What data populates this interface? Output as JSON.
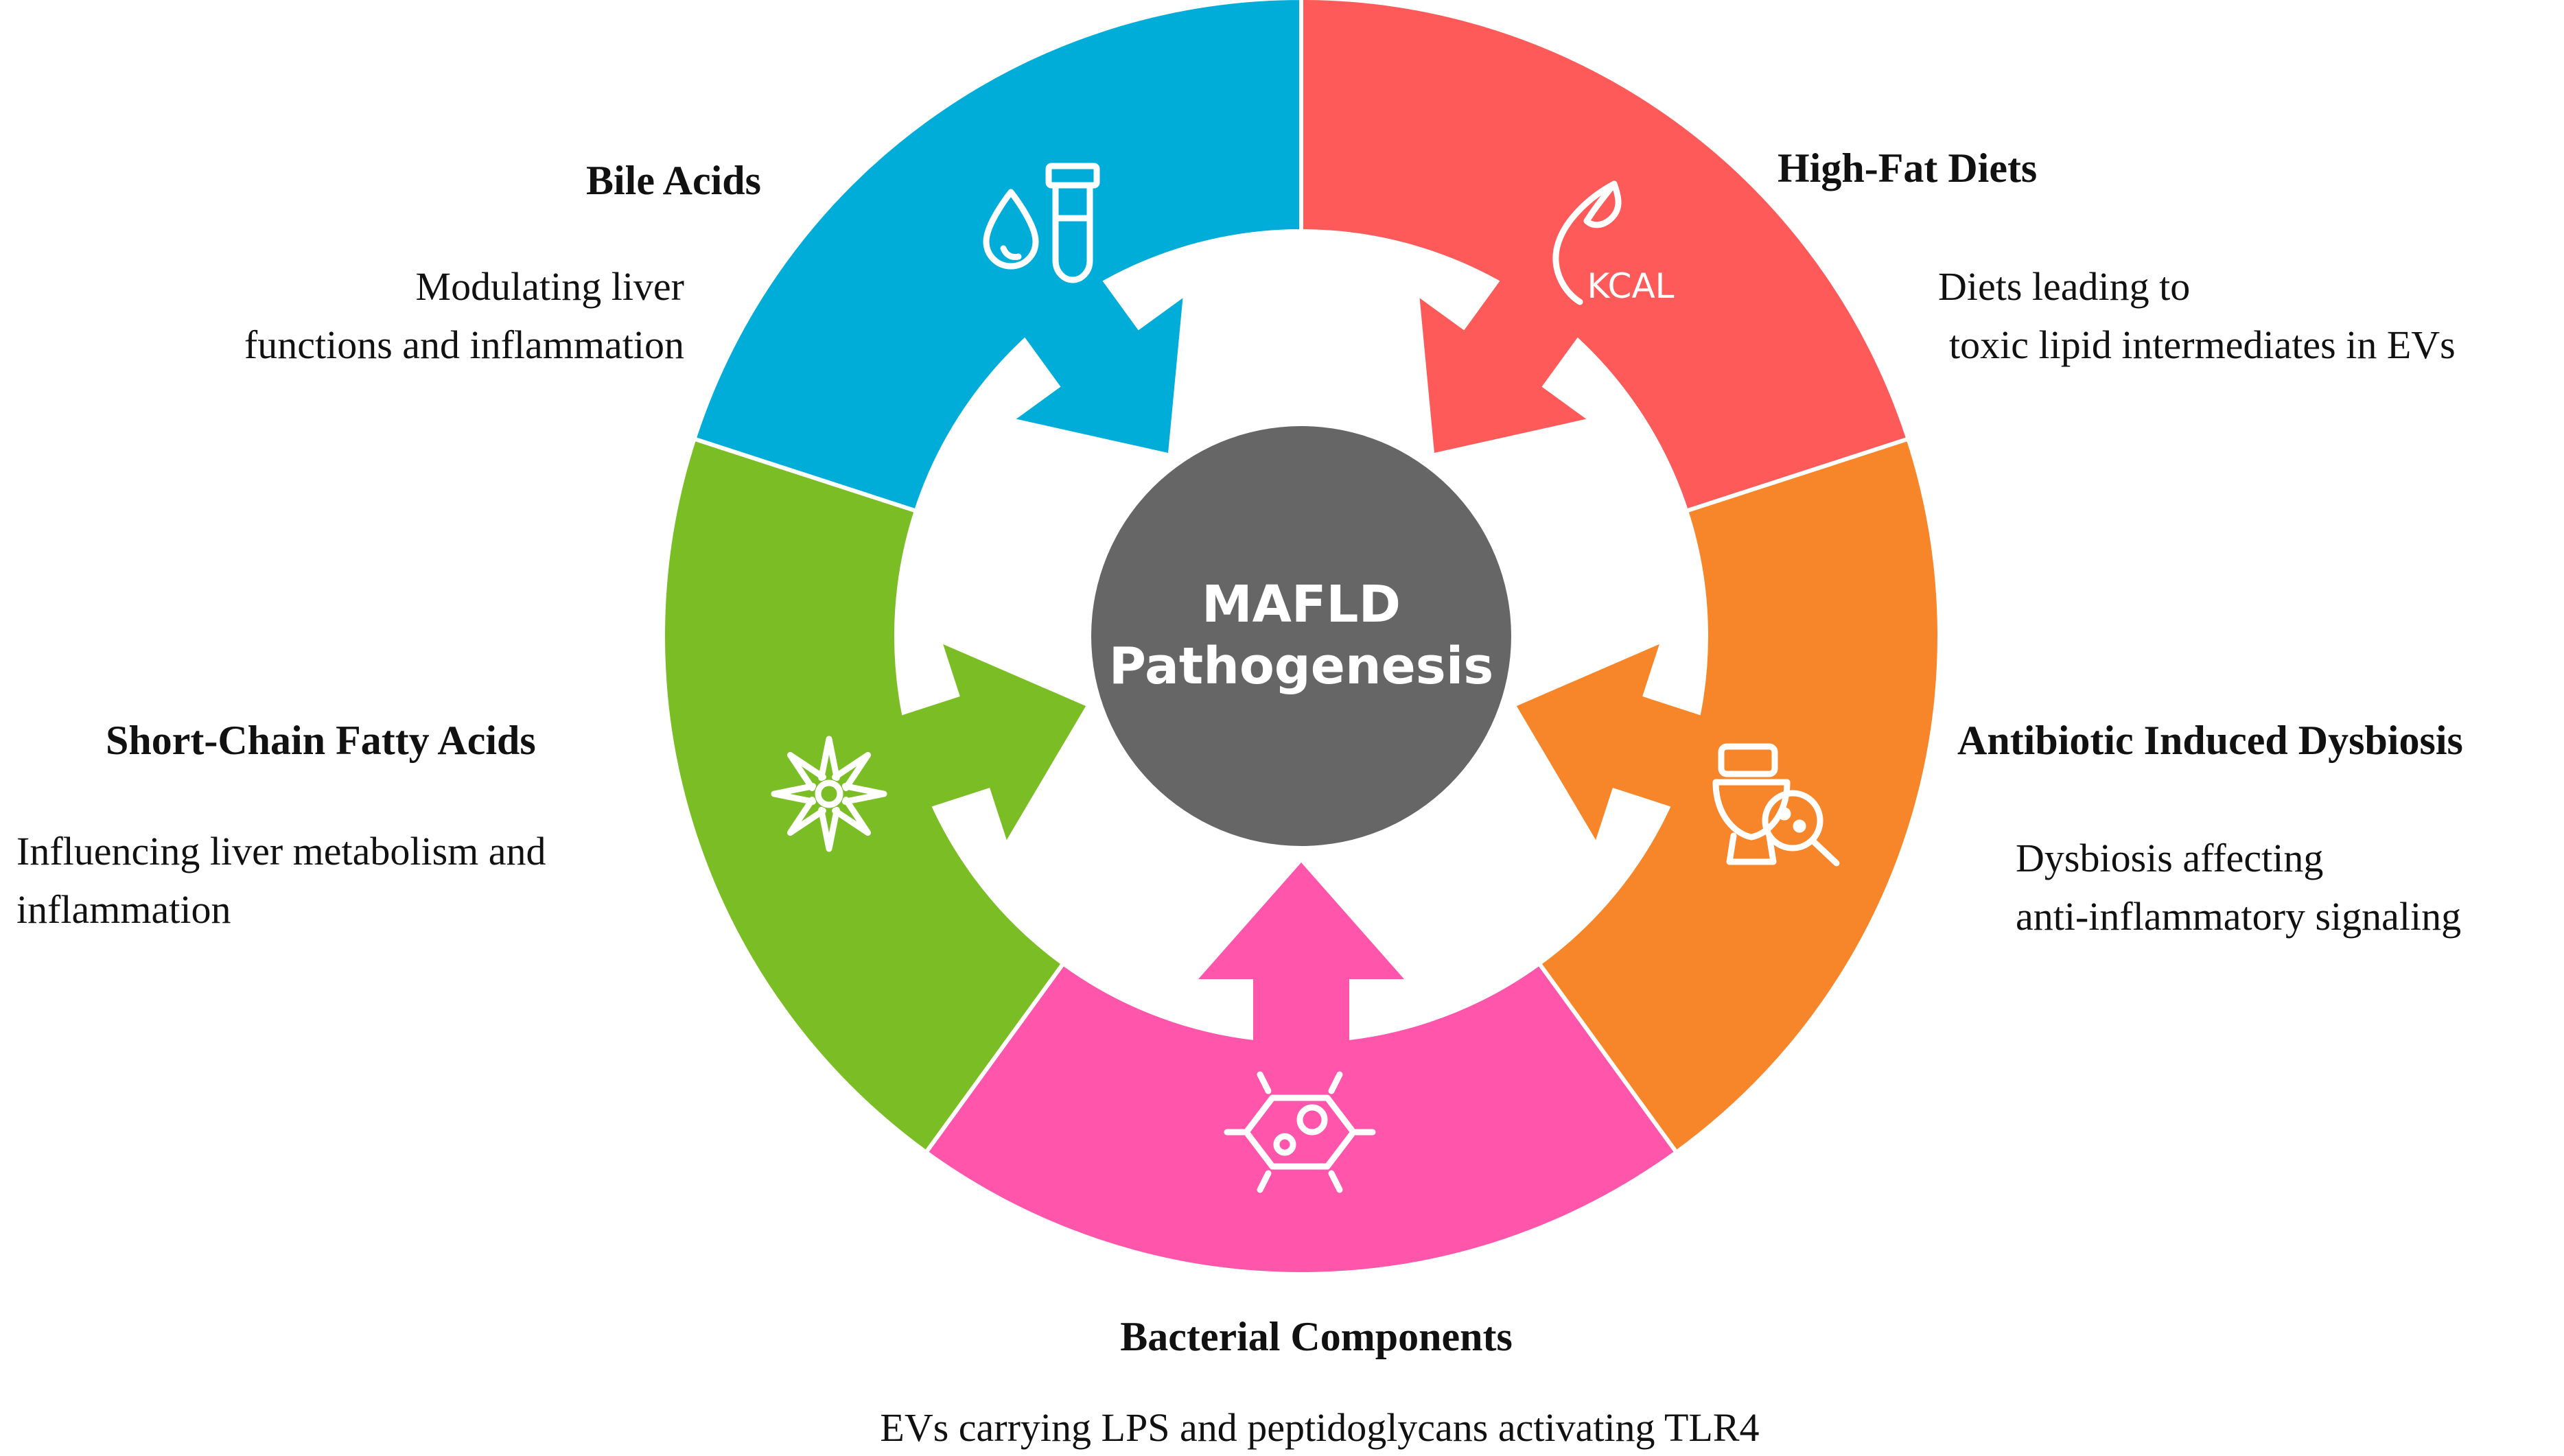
{
  "center": {
    "line1": "MAFLD",
    "line2": "Pathogenesis",
    "color": "#666666"
  },
  "segments": [
    {
      "id": "bile-acids",
      "title": "Bile Acids",
      "desc": [
        "Modulating  liver",
        "functions  and inflammation"
      ],
      "color": "#00ADD8",
      "icon": "droplet-test-tube-icon"
    },
    {
      "id": "high-fat-diets",
      "title": "High-Fat  Diets",
      "desc": [
        "Diets  leading  to",
        "toxic  lipid  intermediates  in  EVs"
      ],
      "color": "#FF5A5A",
      "icon": "kcal-flame-icon",
      "icon_text": "KCAL"
    },
    {
      "id": "antibiotic-dysbiosis",
      "title": "Antibiotic  Induced  Dysbiosis",
      "desc": [
        "Dysbiosis  affecting",
        "anti-inflammatory  signaling"
      ],
      "color": "#F7862A",
      "icon": "toilet-magnifier-icon"
    },
    {
      "id": "bacterial-components",
      "title": "Bacterial  Components",
      "desc": [
        "EVs  carrying  LPS  and  peptidoglycans  activating  TLR4"
      ],
      "color": "#FF55AA",
      "icon": "bacteria-cell-icon"
    },
    {
      "id": "short-chain-fatty-acids",
      "title": "Short-Chain  Fatty  Acids",
      "desc": [
        "Influencing  liver  metabolism  and",
        "inflammation"
      ],
      "color": "#7BBD24",
      "icon": "star-anise-icon"
    }
  ]
}
